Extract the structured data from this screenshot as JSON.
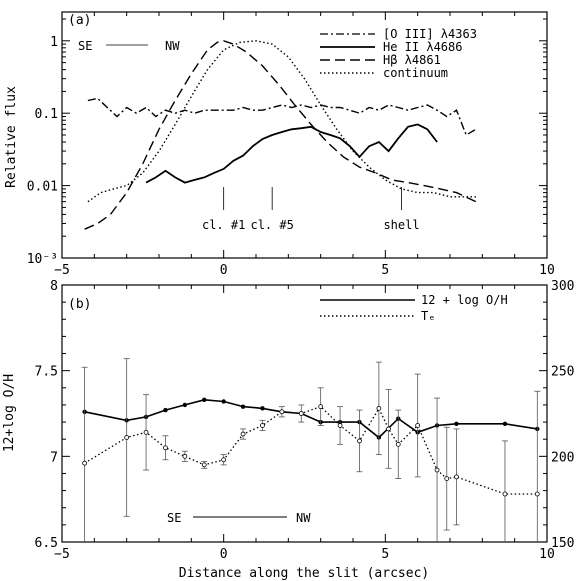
{
  "chart_data": [
    {
      "panel": "(a)",
      "type": "line",
      "ylabel": "Relative flux",
      "yscale": "log",
      "xlim": [
        -5,
        10
      ],
      "ylim": [
        0.001,
        2.5
      ],
      "xticks": [
        -5,
        0,
        5,
        10
      ],
      "yticks": [
        {
          "value": 1,
          "label": "1"
        },
        {
          "value": 0.1,
          "label": "0.1"
        },
        {
          "value": 0.01,
          "label": "0.01"
        },
        {
          "value": 0.001,
          "label": "10⁻³"
        }
      ],
      "legend_position": "top-right",
      "orientation": {
        "left": "SE",
        "right": "NW"
      },
      "annotations": [
        {
          "label": "cl. #1",
          "x": 0.0
        },
        {
          "label": "cl. #5",
          "x": 1.5
        },
        {
          "label": "shell",
          "x": 5.5
        }
      ],
      "series": [
        {
          "name": "[O III] λ4363",
          "style": "dash-dot",
          "x": [
            -4.2,
            -3.9,
            -3.6,
            -3.3,
            -3.0,
            -2.7,
            -2.4,
            -2.1,
            -1.8,
            -1.5,
            -1.2,
            -0.9,
            -0.6,
            -0.3,
            0.0,
            0.3,
            0.6,
            0.9,
            1.2,
            1.5,
            1.8,
            2.1,
            2.4,
            2.7,
            3.0,
            3.3,
            3.6,
            3.9,
            4.2,
            4.5,
            4.8,
            5.1,
            5.4,
            5.7,
            6.0,
            6.3,
            6.6,
            6.9,
            7.2,
            7.5,
            7.8
          ],
          "y": [
            0.15,
            0.16,
            0.12,
            0.09,
            0.12,
            0.1,
            0.12,
            0.09,
            0.11,
            0.1,
            0.11,
            0.1,
            0.11,
            0.11,
            0.11,
            0.11,
            0.12,
            0.11,
            0.11,
            0.12,
            0.13,
            0.12,
            0.13,
            0.12,
            0.13,
            0.12,
            0.12,
            0.11,
            0.1,
            0.12,
            0.11,
            0.13,
            0.12,
            0.11,
            0.12,
            0.13,
            0.11,
            0.09,
            0.11,
            0.05,
            0.06
          ]
        },
        {
          "name": "He II λ4686",
          "style": "solid",
          "x": [
            -2.4,
            -2.1,
            -1.8,
            -1.5,
            -1.2,
            -0.9,
            -0.6,
            -0.3,
            0.0,
            0.3,
            0.6,
            0.9,
            1.2,
            1.5,
            1.8,
            2.1,
            2.4,
            2.7,
            3.0,
            3.3,
            3.6,
            3.9,
            4.2,
            4.5,
            4.8,
            5.1,
            5.4,
            5.7,
            6.0,
            6.3,
            6.6
          ],
          "y": [
            0.011,
            0.013,
            0.016,
            0.013,
            0.011,
            0.012,
            0.013,
            0.015,
            0.017,
            0.022,
            0.026,
            0.035,
            0.044,
            0.05,
            0.055,
            0.06,
            0.062,
            0.065,
            0.055,
            0.05,
            0.045,
            0.035,
            0.025,
            0.035,
            0.04,
            0.03,
            0.045,
            0.065,
            0.07,
            0.06,
            0.04
          ]
        },
        {
          "name": "Hβ λ4861",
          "style": "dashed",
          "x": [
            -4.3,
            -3.9,
            -3.5,
            -3.0,
            -2.5,
            -2.0,
            -1.5,
            -1.0,
            -0.5,
            -0.2,
            0.0,
            0.3,
            0.7,
            1.2,
            1.7,
            2.2,
            2.7,
            3.2,
            3.7,
            4.2,
            4.7,
            5.2,
            5.7,
            6.2,
            6.7,
            7.2,
            7.8
          ],
          "y": [
            0.0025,
            0.003,
            0.004,
            0.008,
            0.02,
            0.06,
            0.15,
            0.35,
            0.75,
            0.95,
            1.0,
            0.9,
            0.7,
            0.45,
            0.25,
            0.13,
            0.07,
            0.04,
            0.025,
            0.018,
            0.015,
            0.012,
            0.011,
            0.01,
            0.009,
            0.008,
            0.006
          ]
        },
        {
          "name": "continuum",
          "style": "dotted",
          "x": [
            -4.2,
            -3.8,
            -3.4,
            -3.0,
            -2.5,
            -2.0,
            -1.5,
            -1.0,
            -0.5,
            0.0,
            0.5,
            1.0,
            1.5,
            2.0,
            2.5,
            3.0,
            3.5,
            4.0,
            4.5,
            5.0,
            5.5,
            6.0,
            6.5,
            7.0,
            7.5,
            7.8
          ],
          "y": [
            0.006,
            0.008,
            0.009,
            0.01,
            0.015,
            0.03,
            0.07,
            0.17,
            0.4,
            0.75,
            0.95,
            1.0,
            0.9,
            0.6,
            0.3,
            0.13,
            0.06,
            0.03,
            0.018,
            0.012,
            0.009,
            0.008,
            0.008,
            0.007,
            0.007,
            0.007
          ]
        }
      ]
    },
    {
      "panel": "(b)",
      "type": "line",
      "xlabel": "Distance along the slit (arcsec)",
      "ylabel": "12+log O/H",
      "xlim": [
        -5,
        10
      ],
      "ylim": [
        6.5,
        8
      ],
      "y2lim": [
        150,
        300
      ],
      "xticks": [
        -5,
        0,
        5,
        10
      ],
      "yticks": [
        6.5,
        7,
        7.5,
        8
      ],
      "y2ticks": [
        150,
        200,
        250,
        300
      ],
      "legend_position": "top-right",
      "orientation": {
        "left": "SE",
        "right": "NW"
      },
      "series": [
        {
          "name": "12 + log O/H",
          "style": "solid",
          "axis": "left",
          "x": [
            -4.3,
            -3.0,
            -2.4,
            -1.8,
            -1.2,
            -0.6,
            0.0,
            0.6,
            1.2,
            1.8,
            2.4,
            3.0,
            3.6,
            4.2,
            4.8,
            5.4,
            6.0,
            6.6,
            7.2,
            8.7,
            9.7
          ],
          "y": [
            7.26,
            7.21,
            7.23,
            7.27,
            7.3,
            7.33,
            7.32,
            7.29,
            7.28,
            7.26,
            7.25,
            7.2,
            7.2,
            7.2,
            7.11,
            7.22,
            7.14,
            7.18,
            7.19,
            7.19,
            7.16
          ]
        },
        {
          "name": "Tₑ",
          "style": "dotted",
          "axis": "right",
          "x": [
            -4.3,
            -3.0,
            -2.4,
            -1.8,
            -1.2,
            -0.6,
            0.0,
            0.6,
            1.2,
            1.8,
            2.4,
            3.0,
            3.6,
            4.2,
            4.8,
            5.1,
            5.4,
            6.0,
            6.6,
            6.9,
            7.2,
            8.7,
            9.7
          ],
          "y": [
            196,
            211,
            214,
            205,
            200,
            195,
            198,
            213,
            218,
            226,
            225,
            229,
            218,
            209,
            228,
            216,
            207,
            218,
            192,
            187,
            188,
            178,
            178
          ],
          "err": [
            56,
            46,
            22,
            7,
            3,
            2,
            3,
            3,
            3,
            3,
            5,
            11,
            11,
            18,
            27,
            23,
            20,
            30,
            42,
            30,
            28,
            31,
            60
          ]
        }
      ]
    }
  ]
}
